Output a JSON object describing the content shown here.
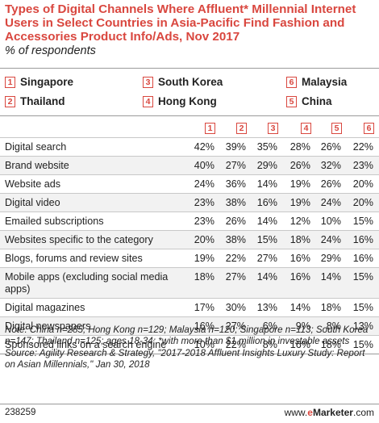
{
  "chart_data": {
    "type": "table",
    "title": "Types of Digital Channels Where Affluent* Millennial Internet Users in Select Countries in Asia-Pacific Find Fashion and Accessories Product Info/Ads, Nov 2017",
    "subtitle": "% of respondents",
    "legend": [
      {
        "num": "1",
        "name": "Singapore"
      },
      {
        "num": "2",
        "name": "Thailand"
      },
      {
        "num": "3",
        "name": "South Korea"
      },
      {
        "num": "4",
        "name": "Hong Kong"
      },
      {
        "num": "6",
        "name": "Malaysia"
      },
      {
        "num": "5",
        "name": "China"
      }
    ],
    "columns": [
      "1",
      "2",
      "3",
      "4",
      "5",
      "6"
    ],
    "rows": [
      {
        "label": "Digital search",
        "values": [
          "42%",
          "39%",
          "35%",
          "28%",
          "26%",
          "22%"
        ]
      },
      {
        "label": "Brand website",
        "values": [
          "40%",
          "27%",
          "29%",
          "26%",
          "32%",
          "23%"
        ]
      },
      {
        "label": "Website ads",
        "values": [
          "24%",
          "36%",
          "14%",
          "19%",
          "26%",
          "20%"
        ]
      },
      {
        "label": "Digital video",
        "values": [
          "23%",
          "38%",
          "16%",
          "19%",
          "24%",
          "20%"
        ]
      },
      {
        "label": "Emailed subscriptions",
        "values": [
          "23%",
          "26%",
          "14%",
          "12%",
          "10%",
          "15%"
        ]
      },
      {
        "label": "Websites specific to the category",
        "values": [
          "20%",
          "38%",
          "15%",
          "18%",
          "24%",
          "16%"
        ]
      },
      {
        "label": "Blogs, forums and review sites",
        "values": [
          "19%",
          "22%",
          "27%",
          "16%",
          "29%",
          "16%"
        ]
      },
      {
        "label": "Mobile apps (excluding social media apps)",
        "values": [
          "18%",
          "27%",
          "14%",
          "16%",
          "14%",
          "15%"
        ]
      },
      {
        "label": "Digital magazines",
        "values": [
          "17%",
          "30%",
          "13%",
          "14%",
          "18%",
          "15%"
        ]
      },
      {
        "label": "Digital newspapers",
        "values": [
          "16%",
          "27%",
          "6%",
          "9%",
          "8%",
          "13%"
        ]
      },
      {
        "label": "Sponsored links on a search engine",
        "values": [
          "10%",
          "22%",
          "8%",
          "16%",
          "18%",
          "15%"
        ]
      }
    ]
  },
  "note": "Note: China n=285; Hong Kong n=129; Malaysia n=120; Singapore n=113; South Korea n=147; Thailand n=125; ages 18-34; *with more than $1 million in investable assets",
  "source": "Source: Agility Research & Strategy, \"2017-2018 Affluent Insights Luxury Study: Report on Asian Millennials,\" Jan 30, 2018",
  "footer": {
    "id": "238259",
    "brand_prefix": "www.",
    "brand_e": "e",
    "brand_name": "Marketer",
    "brand_suffix": ".com"
  },
  "colors": {
    "accent": "#d9473f",
    "stripe": "#f2f2f2"
  }
}
